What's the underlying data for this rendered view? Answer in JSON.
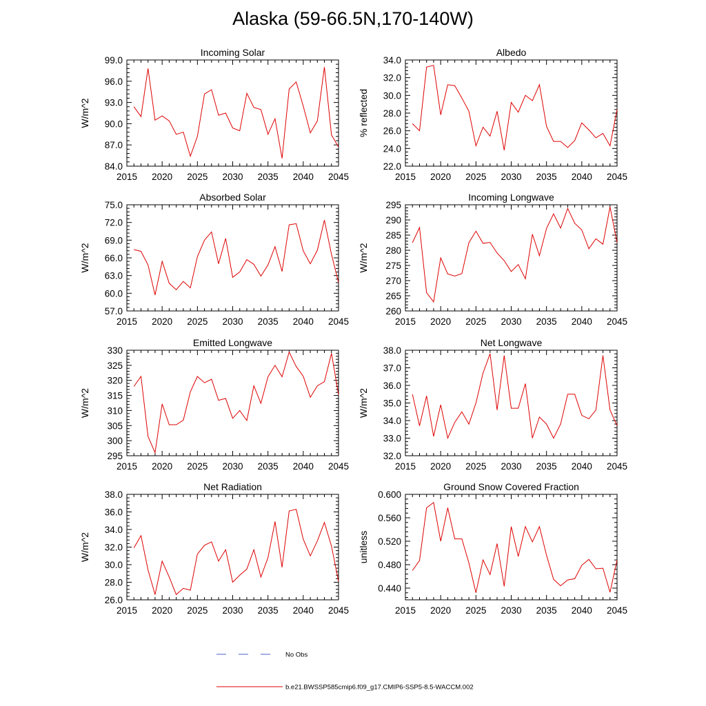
{
  "title": "Alaska (59-66.5N,170-140W)",
  "colors": {
    "model": "#dd0000",
    "obs": "#4a5fc9",
    "axis": "#000000"
  },
  "legend": {
    "obs_label": "No Obs",
    "model_label": "b.e21.BWSSP585cmip6.f09_g17.CMIP6-SSP5-8.5-WACCM.002"
  },
  "chart_data": [
    {
      "type": "line",
      "title": "Incoming Solar",
      "ylabel": "W/m^2",
      "xlim": [
        2015,
        2045
      ],
      "ylim": [
        84,
        99
      ],
      "yticks": [
        84,
        87,
        90,
        93,
        96,
        99
      ],
      "ydec": 1,
      "xticks": [
        2015,
        2020,
        2025,
        2030,
        2035,
        2040,
        2045
      ],
      "x": [
        2016,
        2017,
        2018,
        2019,
        2020,
        2021,
        2022,
        2023,
        2024,
        2025,
        2026,
        2027,
        2028,
        2029,
        2030,
        2031,
        2032,
        2033,
        2034,
        2035,
        2036,
        2037,
        2038,
        2039,
        2040,
        2041,
        2042,
        2043,
        2044,
        2045
      ],
      "values": [
        92.4,
        91.0,
        97.8,
        90.5,
        91.1,
        90.4,
        88.5,
        88.8,
        85.4,
        88.2,
        94.2,
        94.8,
        91.2,
        91.5,
        89.4,
        89.0,
        94.3,
        92.3,
        92.0,
        88.5,
        90.7,
        85.1,
        94.9,
        95.9,
        92.5,
        88.7,
        90.4,
        98.0,
        88.4,
        86.7
      ]
    },
    {
      "type": "line",
      "title": "Albedo",
      "ylabel": "% reflected",
      "xlim": [
        2015,
        2045
      ],
      "ylim": [
        22,
        34
      ],
      "yticks": [
        22,
        24,
        26,
        28,
        30,
        32,
        34
      ],
      "ydec": 1,
      "xticks": [
        2015,
        2020,
        2025,
        2030,
        2035,
        2040,
        2045
      ],
      "x": [
        2016,
        2017,
        2018,
        2019,
        2020,
        2021,
        2022,
        2023,
        2024,
        2025,
        2026,
        2027,
        2028,
        2029,
        2030,
        2031,
        2032,
        2033,
        2034,
        2035,
        2036,
        2037,
        2038,
        2039,
        2040,
        2041,
        2042,
        2043,
        2044,
        2045
      ],
      "values": [
        26.8,
        26.0,
        33.2,
        33.4,
        27.8,
        31.2,
        31.1,
        29.7,
        28.2,
        24.3,
        26.4,
        25.4,
        28.2,
        23.8,
        29.2,
        28.1,
        30.0,
        29.4,
        31.2,
        26.5,
        24.8,
        24.8,
        24.1,
        24.9,
        26.9,
        26.1,
        25.2,
        25.7,
        24.3,
        28.4
      ]
    },
    {
      "type": "line",
      "title": "Absorbed Solar",
      "ylabel": "W/m^2",
      "xlim": [
        2015,
        2045
      ],
      "ylim": [
        57,
        75
      ],
      "yticks": [
        57,
        60,
        63,
        66,
        69,
        72,
        75
      ],
      "ydec": 1,
      "xticks": [
        2015,
        2020,
        2025,
        2030,
        2035,
        2040,
        2045
      ],
      "x": [
        2016,
        2017,
        2018,
        2019,
        2020,
        2021,
        2022,
        2023,
        2024,
        2025,
        2026,
        2027,
        2028,
        2029,
        2030,
        2031,
        2032,
        2033,
        2034,
        2035,
        2036,
        2037,
        2038,
        2039,
        2040,
        2041,
        2042,
        2043,
        2044,
        2045
      ],
      "values": [
        67.4,
        67.1,
        64.8,
        59.7,
        65.4,
        61.7,
        60.6,
        62.0,
        60.9,
        66.2,
        69.0,
        70.4,
        65.0,
        69.3,
        62.7,
        63.6,
        65.7,
        64.9,
        62.9,
        64.8,
        67.9,
        63.7,
        71.6,
        71.8,
        67.2,
        65.0,
        67.3,
        72.4,
        66.6,
        61.8
      ]
    },
    {
      "type": "line",
      "title": "Incoming Longwave",
      "ylabel": "W/m^2",
      "xlim": [
        2015,
        2045
      ],
      "ylim": [
        260,
        295
      ],
      "yticks": [
        260,
        265,
        270,
        275,
        280,
        285,
        290,
        295
      ],
      "ydec": 0,
      "xticks": [
        2015,
        2020,
        2025,
        2030,
        2035,
        2040,
        2045
      ],
      "x": [
        2016,
        2017,
        2018,
        2019,
        2020,
        2021,
        2022,
        2023,
        2024,
        2025,
        2026,
        2027,
        2028,
        2029,
        2030,
        2031,
        2032,
        2033,
        2034,
        2035,
        2036,
        2037,
        2038,
        2039,
        2040,
        2041,
        2042,
        2043,
        2044,
        2045
      ],
      "values": [
        282.5,
        287.5,
        266.0,
        263.0,
        277.5,
        272.2,
        271.5,
        272.3,
        282.5,
        286.3,
        282.3,
        282.6,
        279.1,
        276.6,
        273.0,
        275.3,
        270.6,
        285.3,
        278.2,
        287.2,
        292.0,
        287.3,
        293.8,
        288.9,
        286.7,
        280.5,
        283.8,
        282.0,
        294.3,
        282.5
      ]
    },
    {
      "type": "line",
      "title": "Emitted Longwave",
      "ylabel": "W/m^2",
      "xlim": [
        2015,
        2045
      ],
      "ylim": [
        295,
        330
      ],
      "yticks": [
        295,
        300,
        305,
        310,
        315,
        320,
        325,
        330
      ],
      "ydec": 0,
      "xticks": [
        2015,
        2020,
        2025,
        2030,
        2035,
        2040,
        2045
      ],
      "x": [
        2016,
        2017,
        2018,
        2019,
        2020,
        2021,
        2022,
        2023,
        2024,
        2025,
        2026,
        2027,
        2028,
        2029,
        2030,
        2031,
        2032,
        2033,
        2034,
        2035,
        2036,
        2037,
        2038,
        2039,
        2040,
        2041,
        2042,
        2043,
        2044,
        2045
      ],
      "values": [
        318.0,
        321.3,
        301.4,
        296.0,
        312.2,
        305.3,
        305.3,
        306.8,
        316.2,
        321.3,
        319.2,
        320.4,
        313.4,
        314.0,
        307.4,
        310.0,
        306.7,
        318.2,
        312.4,
        321.2,
        325.0,
        321.2,
        329.4,
        324.6,
        321.4,
        314.4,
        318.2,
        319.6,
        329.0,
        315.2
      ]
    },
    {
      "type": "line",
      "title": "Net Longwave",
      "ylabel": "W/m^2",
      "xlim": [
        2015,
        2045
      ],
      "ylim": [
        32,
        38
      ],
      "yticks": [
        32,
        33,
        34,
        35,
        36,
        37,
        38
      ],
      "ydec": 1,
      "xticks": [
        2015,
        2020,
        2025,
        2030,
        2035,
        2040,
        2045
      ],
      "x": [
        2016,
        2017,
        2018,
        2019,
        2020,
        2021,
        2022,
        2023,
        2024,
        2025,
        2026,
        2027,
        2028,
        2029,
        2030,
        2031,
        2032,
        2033,
        2034,
        2035,
        2036,
        2037,
        2038,
        2039,
        2040,
        2041,
        2042,
        2043,
        2044,
        2045
      ],
      "values": [
        35.5,
        33.7,
        35.4,
        33.1,
        34.9,
        33.0,
        33.9,
        34.5,
        33.8,
        35.0,
        36.7,
        37.8,
        34.6,
        37.7,
        34.7,
        34.7,
        36.1,
        33.0,
        34.2,
        33.8,
        33.0,
        33.8,
        35.5,
        35.5,
        34.3,
        34.1,
        34.6,
        37.7,
        34.6,
        33.7
      ]
    },
    {
      "type": "line",
      "title": "Net Radiation",
      "ylabel": "W/m^2",
      "xlim": [
        2015,
        2045
      ],
      "ylim": [
        26,
        38
      ],
      "yticks": [
        26,
        28,
        30,
        32,
        34,
        36,
        38
      ],
      "ydec": 1,
      "xticks": [
        2015,
        2020,
        2025,
        2030,
        2035,
        2040,
        2045
      ],
      "x": [
        2016,
        2017,
        2018,
        2019,
        2020,
        2021,
        2022,
        2023,
        2024,
        2025,
        2026,
        2027,
        2028,
        2029,
        2030,
        2031,
        2032,
        2033,
        2034,
        2035,
        2036,
        2037,
        2038,
        2039,
        2040,
        2041,
        2042,
        2043,
        2044,
        2045
      ],
      "values": [
        31.9,
        33.3,
        29.4,
        26.6,
        30.4,
        28.6,
        26.6,
        27.3,
        27.1,
        31.2,
        32.2,
        32.6,
        30.4,
        31.7,
        28.0,
        28.8,
        29.5,
        31.7,
        28.6,
        30.8,
        34.9,
        29.7,
        36.1,
        36.3,
        32.9,
        31.0,
        32.7,
        34.8,
        32.1,
        28.1
      ]
    },
    {
      "type": "line",
      "title": "Ground Snow Covered Fraction",
      "ylabel": "unitless",
      "xlim": [
        2015,
        2045
      ],
      "ylim": [
        0.42,
        0.6
      ],
      "yticks": [
        0.44,
        0.48,
        0.52,
        0.56,
        0.6
      ],
      "ydec": 3,
      "xticks": [
        2015,
        2020,
        2025,
        2030,
        2035,
        2040,
        2045
      ],
      "x": [
        2016,
        2017,
        2018,
        2019,
        2020,
        2021,
        2022,
        2023,
        2024,
        2025,
        2026,
        2027,
        2028,
        2029,
        2030,
        2031,
        2032,
        2033,
        2034,
        2035,
        2036,
        2037,
        2038,
        2039,
        2040,
        2041,
        2042,
        2043,
        2044,
        2045
      ],
      "values": [
        0.47,
        0.487,
        0.577,
        0.586,
        0.52,
        0.577,
        0.524,
        0.524,
        0.483,
        0.432,
        0.488,
        0.463,
        0.516,
        0.443,
        0.545,
        0.494,
        0.545,
        0.519,
        0.545,
        0.496,
        0.455,
        0.444,
        0.454,
        0.456,
        0.479,
        0.489,
        0.473,
        0.474,
        0.433,
        0.488
      ]
    }
  ]
}
